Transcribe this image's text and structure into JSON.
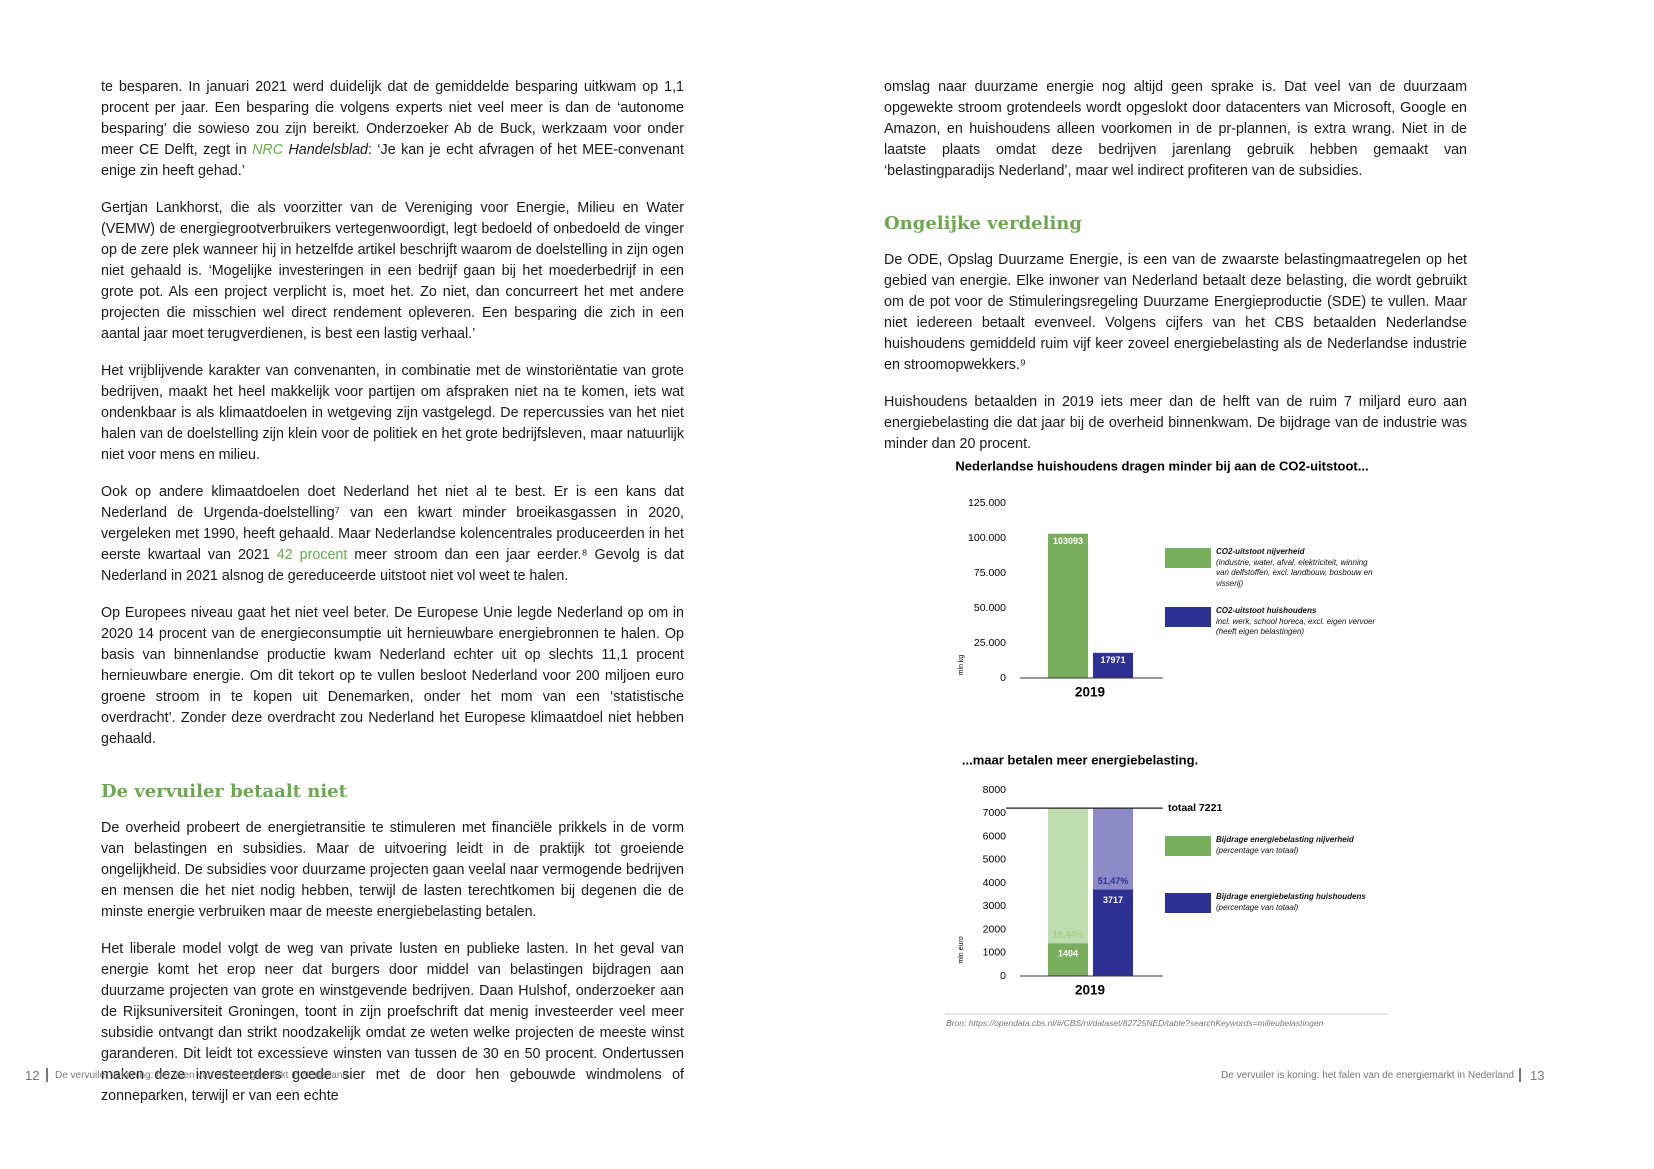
{
  "left": {
    "blocks": [
      {
        "p": [
          "te besparen. In januari 2021 werd duidelijk dat de gemiddelde besparing uitkwam op 1,1 procent per jaar. Een besparing die volgens experts niet veel meer is dan de ‘autonome besparing’ die sowieso zou zijn bereikt. Onderzoeker Ab de Buck, werkzaam voor onder meer CE Delft, zegt in ",
          {
            "text": "NRC",
            "color": "#6aa84f",
            "italic": true
          },
          {
            "text": " Handelsblad",
            "italic": true
          },
          ": ‘Je kan je echt afvragen of het MEE-convenant enige zin heeft gehad.’"
        ]
      },
      {
        "p": [
          "Gertjan Lankhorst, die als voorzitter van de Vereniging voor Energie, Milieu en Water (VEMW) de energiegrootverbruikers vertegenwoordigt, legt bedoeld of onbedoeld de vinger op de zere plek wanneer hij in hetzelfde artikel beschrijft waarom de doelstelling in zijn ogen niet gehaald is. ‘Mogelijke investeringen in een bedrijf gaan bij het moederbedrijf in een grote pot. Als een project verplicht is, moet het. Zo niet, dan concurreert het met andere projecten die misschien wel direct rendement opleveren. Een besparing die zich in een aantal jaar moet terugverdienen, is best een lastig verhaal.’"
        ]
      },
      {
        "p": [
          "Het vrijblijvende karakter van convenanten, in combinatie met de winstoriëntatie van grote bedrijven, maakt het heel makkelijk voor partijen om afspraken niet na te komen, iets wat ondenkbaar is als klimaatdoelen in wetgeving zijn vastgelegd. De repercussies van het niet halen van de doelstelling zijn klein voor de politiek en het grote bedrijfsleven, maar natuurlijk niet voor mens en milieu."
        ]
      },
      {
        "p": [
          "Ook op andere klimaatdoelen doet Nederland het niet al te best. Er is een kans dat Nederland de Urgenda-doelstelling⁷ van een kwart minder broeikasgassen in 2020, vergeleken met 1990, heeft gehaald. Maar Nederlandse kolencentrales produceerden in het eerste kwartaal van 2021 ",
          {
            "text": "42 procent",
            "color": "#6aa84f"
          },
          " meer stroom dan een jaar eerder.⁸ Gevolg is dat Nederland in 2021 alsnog de gereduceerde uitstoot niet vol weet te halen."
        ]
      },
      {
        "p": [
          "Op Europees niveau gaat het niet veel beter. De Europese Unie legde Nederland op om in 2020 14 procent van de energieconsumptie uit hernieuwbare energiebronnen te halen. Op basis van binnenlandse productie kwam Nederland echter uit op slechts 11,1 procent hernieuwbare energie. Om dit tekort op te vullen besloot Nederland voor 200 miljoen euro groene stroom in te kopen uit Denemarken, onder het mom van een ‘statistische overdracht’. Zonder deze overdracht zou Nederland het Europese klimaatdoel niet hebben gehaald."
        ]
      },
      {
        "h": "De vervuiler betaalt niet"
      },
      {
        "p": [
          "De overheid probeert de energietransitie te stimuleren met financiële prikkels in de vorm van belastingen en subsidies. Maar de uitvoering leidt in de praktijk tot groeiende ongelijkheid. De subsidies voor duurzame projecten gaan veelal naar vermogende bedrijven en mensen die het niet nodig hebben, terwijl de lasten terechtkomen bij degenen die de minste energie verbruiken maar de meeste energiebelasting betalen."
        ]
      },
      {
        "p": [
          "Het liberale model volgt de weg van private lusten en publieke lasten. In het geval van energie komt het erop neer dat burgers door middel van belastingen bijdragen aan duurzame projecten van grote en winstgevende bedrijven. Daan Hulshof, onderzoeker aan de Rijksuniversiteit Groningen, toont in zijn proefschrift dat menig investeerder veel meer subsidie ontvangt dan strikt noodzakelijk omdat ze weten welke projecten de meeste winst garanderen. Dit leidt tot excessieve winsten van tussen de 30 en 50 procent. Ondertussen maken deze investeerders goede sier met de door hen gebouwde windmolens of zonneparken, terwijl er van een echte"
        ]
      }
    ]
  },
  "right": {
    "blocks": [
      {
        "p": [
          "omslag naar duurzame energie nog altijd geen sprake is. Dat veel van de duurzaam opgewekte stroom grotendeels wordt opgeslokt door datacenters van Microsoft, Google en Amazon, en huishoudens alleen voorkomen in de pr-plannen, is extra wrang. Niet in de laatste plaats omdat deze bedrijven jarenlang gebruik hebben gemaakt van ‘belastingparadijs Nederland’, maar wel indirect profiteren van de subsidies."
        ]
      },
      {
        "h": "Ongelijke verdeling"
      },
      {
        "p": [
          "De ODE, Opslag Duurzame Energie, is een van de zwaarste belastingmaatregelen op het gebied van energie. Elke inwoner van Nederland betaalt deze belasting, die wordt gebruikt om de pot voor de Stimuleringsregeling Duurzame Energieproductie (SDE) te vullen. Maar niet iedereen betaalt evenveel. Volgens cijfers van het CBS betaalden Nederlandse huishoudens gemiddeld ruim vijf keer zoveel energiebelasting als de Nederlandse industrie en stroomopwekkers.⁹"
        ]
      },
      {
        "p": [
          "Huishoudens betaalden in 2019 iets meer dan de helft van de ruim 7 miljard euro aan energiebelasting die dat jaar bij de overheid binnenkwam. De bijdrage van de industrie was minder dan 20 procent."
        ]
      }
    ]
  },
  "chart_data": [
    {
      "type": "bar",
      "title": "Nederlandse huishoudens dragen minder bij aan de CO2-uitstoot...",
      "ylabel": "mln kg",
      "categories": [
        "2019"
      ],
      "ylim": [
        0,
        125000
      ],
      "yticks": [
        0,
        {
          "value": 25000,
          "label": "25.000"
        },
        {
          "value": 50000,
          "label": "50.000"
        },
        {
          "value": 75000,
          "label": "75.000"
        },
        {
          "value": 100000,
          "label": "100.000"
        },
        {
          "value": 125000,
          "label": "125.000"
        }
      ],
      "series": [
        {
          "name": "CO2-uitstoot nijverheid",
          "note": "(industrie, water, afval, elektriciteit, winning van delfstoffen, excl. landbouw, bosbouw en visserij)",
          "color": "#7aad5e",
          "values": [
            103093
          ]
        },
        {
          "name": "CO2-uitstoot huishoudens",
          "note": "incl. werk, school horeca, excl. eigen vervoer (heeft eigen belastingen)",
          "color": "#2e3192",
          "values": [
            17971
          ]
        }
      ]
    },
    {
      "type": "bar",
      "title": "...maar betalen meer energiebelasting.",
      "ylabel": "mln euro",
      "categories": [
        "2019"
      ],
      "ylim": [
        0,
        8000
      ],
      "yticks": [
        0,
        1000,
        2000,
        3000,
        4000,
        5000,
        6000,
        7000,
        8000
      ],
      "total": {
        "value": 7221,
        "label": "totaal 7221"
      },
      "series": [
        {
          "name": "Bijdrage energiebelasting nijverheid",
          "note": "(percentage van totaal)",
          "color": "#7aad5e",
          "light_color": "#bfdcb0",
          "values": [
            1404
          ],
          "shares": [
            19.44
          ],
          "share_labels": [
            "19,44%"
          ],
          "share_color": "#a8cf8e"
        },
        {
          "name": "Bijdrage energiebelasting huishoudens",
          "note": "(percentage van totaal)",
          "color": "#2e3192",
          "light_color": "#8c89c6",
          "values": [
            3717
          ],
          "shares": [
            51.47
          ],
          "share_labels": [
            "51,47%"
          ],
          "share_color": "#2e3192"
        }
      ]
    }
  ],
  "source": "Bron: https://opendata.cbs.nl/#/CBS/nl/dataset/82725NED/table?searchKeywords=milieubelastingen",
  "footer": {
    "left_page": "12",
    "left_title": "De vervuiler is koning: het falen van de energiemarkt in Nederland",
    "right_title": "De vervuiler is koning: het falen van de energiemarkt in Nederland",
    "right_page": "13"
  }
}
